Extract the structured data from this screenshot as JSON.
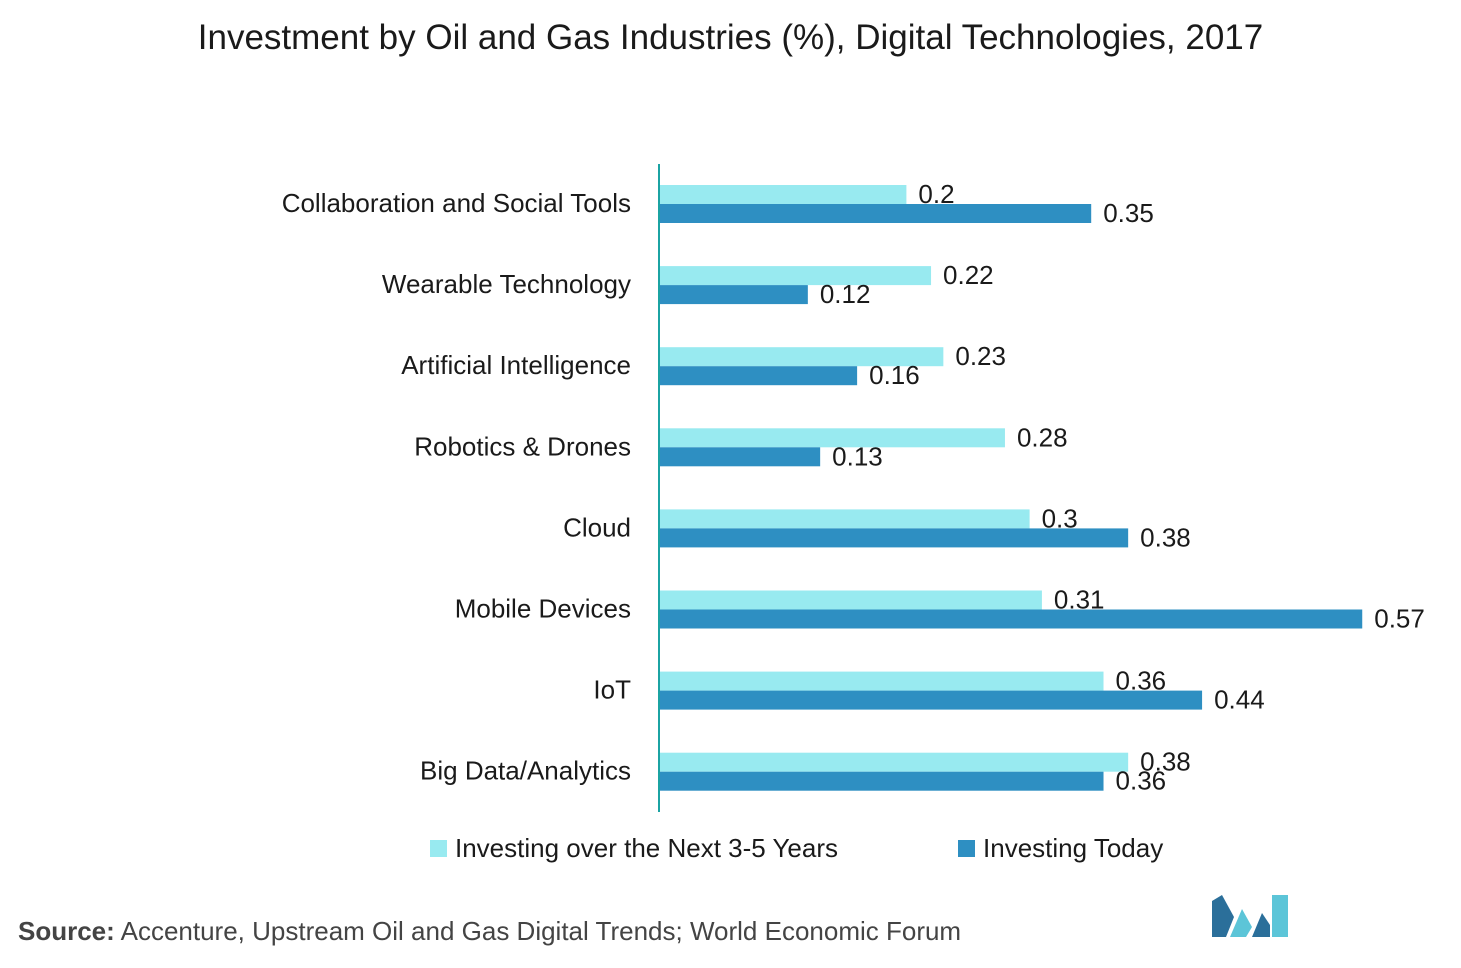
{
  "title": "Investment by Oil and Gas Industries (%), Digital Technologies, 2017",
  "source": {
    "label": "Source:",
    "text": " Accenture, Upstream Oil and Gas Digital Trends; World Economic Forum"
  },
  "colors": {
    "next_years": "#98eaf0",
    "today": "#2e8fc2",
    "axis": "#1ba3a3",
    "logo_dark": "#2b6f9a",
    "logo_light": "#5cc5d8"
  },
  "legend": {
    "next_years": "Investing over the Next 3-5 Years",
    "today": "Investing Today"
  },
  "chart_data": {
    "type": "bar",
    "orientation": "horizontal",
    "title": "Investment by Oil and Gas Industries (%), Digital Technologies, 2017",
    "categories": [
      "Collaboration and Social Tools",
      "Wearable Technology",
      "Artificial Intelligence",
      "Robotics & Drones",
      "Cloud",
      "Mobile Devices",
      "IoT",
      "Big Data/Analytics"
    ],
    "series": [
      {
        "name": "Investing over the Next 3-5 Years",
        "values": [
          0.2,
          0.22,
          0.23,
          0.28,
          0.3,
          0.31,
          0.36,
          0.38
        ],
        "labels": [
          "0.2",
          "0.22",
          "0.23",
          "0.28",
          "0.3",
          "0.31",
          "0.36",
          "0.38"
        ]
      },
      {
        "name": "Investing Today",
        "values": [
          0.35,
          0.12,
          0.16,
          0.13,
          0.38,
          0.57,
          0.44,
          0.36
        ],
        "labels": [
          "0.35",
          "0.12",
          "0.16",
          "0.13",
          "0.38",
          "0.57",
          "0.44",
          "0.36"
        ]
      }
    ],
    "xlim": [
      0,
      0.57
    ],
    "grid": false,
    "legend_position": "bottom",
    "data_labels": true
  }
}
